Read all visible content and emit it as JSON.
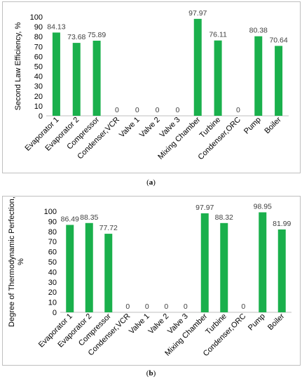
{
  "chart_data": [
    {
      "type": "bar",
      "panel_caption": [
        "(",
        "a",
        ")"
      ],
      "ylabel": "Second Law Efficiency, %",
      "xlabel": "",
      "ylim": [
        0,
        100
      ],
      "yticks": [
        0,
        10,
        20,
        30,
        40,
        50,
        60,
        70,
        80,
        90,
        100
      ],
      "grid": false,
      "legend": "none",
      "bar_color": "#1ab04c",
      "categories": [
        "Evaporator 1",
        "Evaporator 2",
        "Compressor",
        "Condenser,VCR",
        "Valve 1",
        "Valve 2",
        "Valve 3",
        "Mixing Chamber",
        "Turbine",
        "Condenser,ORC",
        "Pump",
        "Boiler"
      ],
      "values": [
        84.13,
        73.68,
        75.89,
        0,
        0,
        0,
        0,
        97.97,
        76.11,
        0,
        80.38,
        70.64
      ],
      "data_labels": [
        "84.13",
        "73.68",
        "75.89",
        "0",
        "0",
        "0",
        "0",
        "97.97",
        "76.11",
        "0",
        "80.38",
        "70.64"
      ]
    },
    {
      "type": "bar",
      "panel_caption": [
        "(",
        "b",
        ")"
      ],
      "ylabel": "Degree of Thermodynamic Perfection, %",
      "xlabel": "",
      "ylim": [
        0,
        100
      ],
      "yticks": [
        0,
        10,
        20,
        30,
        40,
        50,
        60,
        70,
        80,
        90,
        100
      ],
      "grid": false,
      "legend": "none",
      "bar_color": "#1ab04c",
      "categories": [
        "Evaporator 1",
        "Evaporator 2",
        "Compressor",
        "Condenser,VCR",
        "Valve 1",
        "Valve 2",
        "Valve 3",
        "Mixing Chamber",
        "Turbine",
        "Condenser,ORC",
        "Pump",
        "Boiler"
      ],
      "values": [
        86.49,
        88.35,
        77.72,
        0,
        0,
        0,
        0,
        97.97,
        88.32,
        0,
        98.95,
        81.99
      ],
      "data_labels": [
        "86.49",
        "88.35",
        "77.72",
        "0",
        "0",
        "0",
        "0",
        "97.97",
        "88.32",
        "0",
        "98.95",
        "81.99"
      ]
    }
  ]
}
